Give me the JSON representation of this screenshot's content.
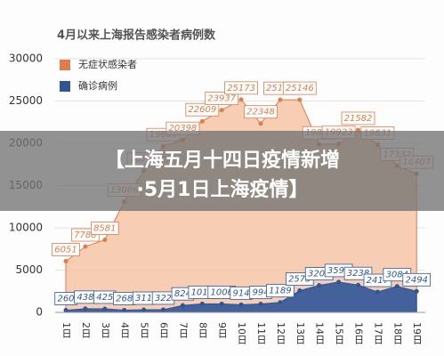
{
  "chart_data": {
    "type": "area",
    "title": "4月以来上海报告感染者病例数",
    "banner": [
      "【上海五月十四日疫情新增",
      "·5月1日上海疫情】"
    ],
    "categories": [
      "1日",
      "2日",
      "3日",
      "4日",
      "5日",
      "6日",
      "7日",
      "8日",
      "9日",
      "10日",
      "11日",
      "12日",
      "13日",
      "14日",
      "15日",
      "16日",
      "17日",
      "18日",
      "19日"
    ],
    "series": [
      {
        "name": "无症状感染者",
        "color": "#e07b4a",
        "values": [
          6051,
          7788,
          8581,
          13086,
          16766,
          19660,
          20398,
          22609,
          23937,
          25173,
          22348,
          25141,
          25146,
          19872,
          19923,
          21582,
          19831,
          17332,
          16407
        ]
      },
      {
        "name": "确诊病例",
        "color": "#2f5597",
        "values": [
          260,
          438,
          425,
          268,
          311,
          322,
          824,
          1015,
          1006,
          914,
          994,
          1189,
          2573,
          3200,
          3590,
          3238,
          2417,
          3084,
          2494
        ]
      }
    ],
    "ylim": [
      0,
      30000
    ],
    "yticks": [
      0,
      5000,
      10000,
      15000,
      20000,
      25000,
      30000
    ],
    "grid": true
  }
}
